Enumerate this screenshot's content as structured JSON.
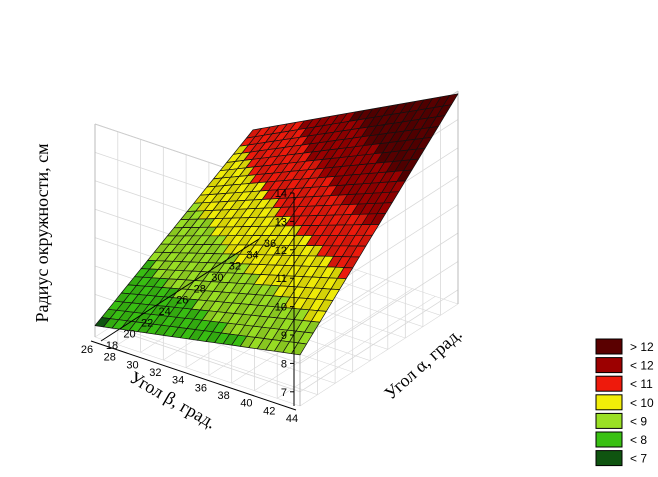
{
  "chart_data": {
    "type": "surface3d",
    "zlabel": "Радиус окружности, см",
    "xlabel": "Угол α, град.",
    "ylabel": "Угол β, град.",
    "x_ticks": [
      18,
      20,
      22,
      24,
      26,
      28,
      30,
      32,
      34,
      36
    ],
    "y_ticks": [
      26,
      28,
      30,
      32,
      34,
      36,
      38,
      40,
      42,
      44
    ],
    "z_ticks": [
      7,
      8,
      9,
      10,
      11,
      12,
      13,
      14
    ],
    "xlim": [
      18,
      36
    ],
    "ylim": [
      26,
      44
    ],
    "zlim": [
      6.5,
      14
    ],
    "corner_values": [
      {
        "alpha": 18,
        "beta": 44,
        "radius": 8.3
      },
      {
        "alpha": 18,
        "beta": 26,
        "radius": 6.9
      },
      {
        "alpha": 36,
        "beta": 26,
        "radius": 10.2
      },
      {
        "alpha": 36,
        "beta": 44,
        "radius": 13.9
      }
    ],
    "grid": true,
    "legend_position": "right",
    "legend": [
      {
        "label": "> 12",
        "color": "#5a0000"
      },
      {
        "label": "< 12",
        "color": "#9c0000"
      },
      {
        "label": "< 11",
        "color": "#ee1a0c"
      },
      {
        "label": "< 10",
        "color": "#f2ee08"
      },
      {
        "label": "< 9",
        "color": "#9ae024"
      },
      {
        "label": "< 8",
        "color": "#39c012"
      },
      {
        "label": "< 7",
        "color": "#0f5410"
      }
    ]
  }
}
